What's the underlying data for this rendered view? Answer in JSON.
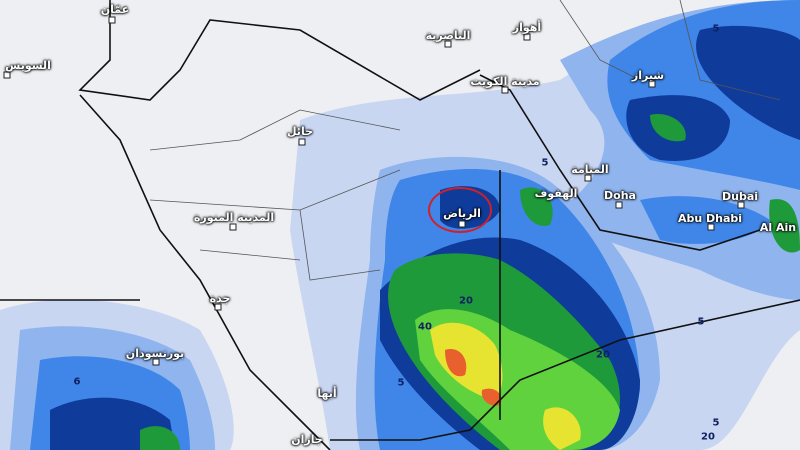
{
  "map": {
    "highlighted_city": "الرياض",
    "highlight_color": "#d0202a",
    "precip_colors": [
      "#c9d6f2",
      "#8fb4ee",
      "#3f86e8",
      "#1b5fd6",
      "#0f3b9a",
      "#1f9a3a",
      "#5fd23e",
      "#e6e430",
      "#f0a640",
      "#e8602e"
    ],
    "cities": [
      {
        "name": "عمّان"
      },
      {
        "name": "السويس"
      },
      {
        "name": "حائل"
      },
      {
        "name": "المدينة المنورة"
      },
      {
        "name": "جدة"
      },
      {
        "name": "الرياض"
      },
      {
        "name": "مدينة الكويت"
      },
      {
        "name": "الناصرية"
      },
      {
        "name": "أهواز"
      },
      {
        "name": "شيراز"
      },
      {
        "name": "المنامة"
      },
      {
        "name": "الهفوف"
      },
      {
        "name": "Doha"
      },
      {
        "name": "Dubai"
      },
      {
        "name": "Abu Dhabi"
      },
      {
        "name": "Al Ain"
      },
      {
        "name": "بورتسودان"
      },
      {
        "name": "أبها"
      },
      {
        "name": "جازان"
      }
    ],
    "contour_labels": [
      "5",
      "5",
      "20",
      "40",
      "20",
      "5",
      "5",
      "5",
      "20",
      "6"
    ]
  }
}
